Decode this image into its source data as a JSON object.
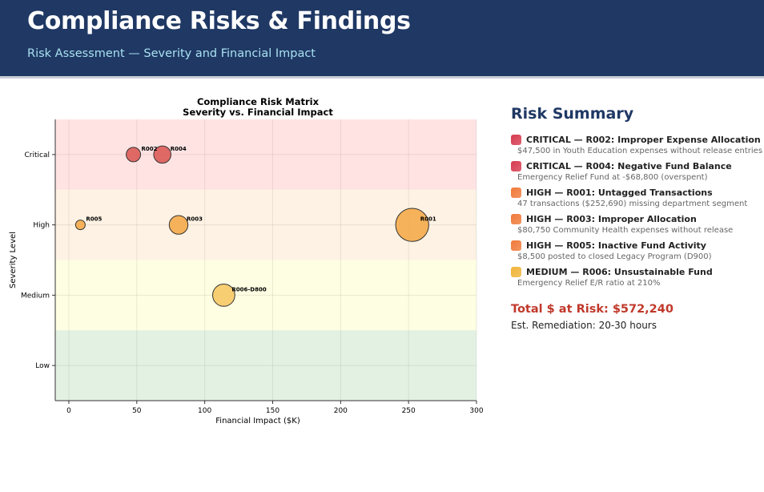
{
  "header": {
    "title": "Compliance Risks & Findings",
    "subtitle": "Risk Assessment — Severity and Financial Impact"
  },
  "chart_data": {
    "type": "scatter",
    "title": "Compliance Risk Matrix",
    "subtitle": "Severity vs. Financial Impact",
    "xlabel": "Financial Impact ($K)",
    "ylabel": "Severity Level",
    "xlim": [
      -10,
      300
    ],
    "xticks": [
      0,
      50,
      100,
      150,
      200,
      250,
      300
    ],
    "yticks": [
      "Low",
      "Medium",
      "High",
      "Critical"
    ],
    "ylim_levels": [
      0.5,
      4.5
    ],
    "bands": [
      {
        "level": "Critical",
        "color": "#ffe3e3"
      },
      {
        "level": "High",
        "color": "#fdf2e3"
      },
      {
        "level": "Medium",
        "color": "#fefee3"
      },
      {
        "level": "Low",
        "color": "#e3f1e3"
      }
    ],
    "points": [
      {
        "label": "R002",
        "x": 47.5,
        "severity": "Critical",
        "color": "#d9534f"
      },
      {
        "label": "R004",
        "x": 68.8,
        "severity": "Critical",
        "color": "#d9534f"
      },
      {
        "label": "R005",
        "x": 8.5,
        "severity": "High",
        "color": "#f5a742"
      },
      {
        "label": "R003",
        "x": 80.75,
        "severity": "High",
        "color": "#f5a742"
      },
      {
        "label": "R001",
        "x": 252.69,
        "severity": "High",
        "color": "#f5a742"
      },
      {
        "label": "R006-D800",
        "x": 114,
        "severity": "Medium",
        "color": "#f7c55e"
      }
    ]
  },
  "summary": {
    "heading": "Risk Summary",
    "items": [
      {
        "title": "CRITICAL — R002: Improper Expense Allocation",
        "desc": "$47,500 in Youth Education expenses without release entries",
        "color": "#d63a4f"
      },
      {
        "title": "CRITICAL — R004: Negative Fund Balance",
        "desc": "Emergency Relief Fund at -$68,800 (overspent)",
        "color": "#d63a4f"
      },
      {
        "title": "HIGH — R001: Untagged Transactions",
        "desc": "47 transactions ($252,690) missing department segment",
        "color": "#f07a3a"
      },
      {
        "title": "HIGH — R003: Improper Allocation",
        "desc": "$80,750 Community Health expenses without release",
        "color": "#f07a3a"
      },
      {
        "title": "HIGH — R005: Inactive Fund Activity",
        "desc": "$8,500 posted to closed Legacy Program (D900)",
        "color": "#f07a3a"
      },
      {
        "title": "MEDIUM — R006: Unsustainable Fund",
        "desc": "Emergency Relief E/R ratio at 210%",
        "color": "#f0b53a"
      }
    ],
    "total": "Total $ at Risk: $572,240",
    "remediation": "Est. Remediation: 20-30 hours"
  }
}
